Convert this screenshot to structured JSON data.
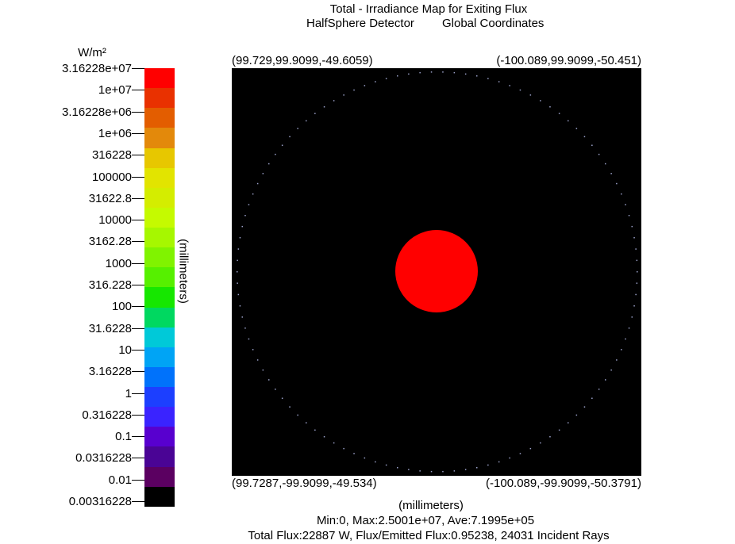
{
  "title": {
    "line1": "Total - Irradiance Map for Exiting Flux",
    "line2_left": "HalfSphere Detector",
    "line2_right": "Global Coordinates"
  },
  "colorbar": {
    "unit": "W/m²",
    "axis_label": "(millimeters)",
    "ticks": [
      "3.16228e+07",
      "1e+07",
      "3.16228e+06",
      "1e+06",
      "316228",
      "100000",
      "31622.8",
      "10000",
      "3162.28",
      "1000",
      "316.228",
      "100",
      "31.6228",
      "10",
      "3.16228",
      "1",
      "0.316228",
      "0.1",
      "0.0316228",
      "0.01",
      "0.00316228"
    ],
    "colors": [
      "#ff0000",
      "#e93100",
      "#e35d00",
      "#e3890b",
      "#e7c700",
      "#e2e400",
      "#d4ed00",
      "#c5fa00",
      "#a6f700",
      "#80f300",
      "#56f000",
      "#16e700",
      "#00d860",
      "#00c9d8",
      "#00a4f5",
      "#0072fb",
      "#1c3fff",
      "#3a23ff",
      "#5800cf",
      "#4a0495",
      "#5b0061",
      "#000000"
    ]
  },
  "corners": {
    "top_left": "(99.729,99.9099,-49.6059)",
    "top_right": "(-100.089,99.9099,-50.451)",
    "bottom_left": "(99.7287,-99.9099,-49.534)",
    "bottom_right": "(-100.089,-99.9099,-50.3791)"
  },
  "footer": {
    "xlabel": "(millimeters)",
    "stats": "Min:0, Max:2.5001e+07, Ave:7.1995e+05",
    "flux": "Total Flux:22887 W, Flux/Emitted Flux:0.95238, 24031 Incident Rays"
  },
  "chart_data": {
    "type": "heatmap",
    "title": "Total - Irradiance Map for Exiting Flux",
    "subtitle": "HalfSphere Detector    Global Coordinates",
    "xlabel": "(millimeters)",
    "ylabel": "(millimeters)",
    "color_scale": "log",
    "unit": "W/m²",
    "value_range": [
      0,
      25001000
    ],
    "spot_color": "#ff0000",
    "background_color": "#000000",
    "ring_dot_color": "#9aa0c8"
  }
}
